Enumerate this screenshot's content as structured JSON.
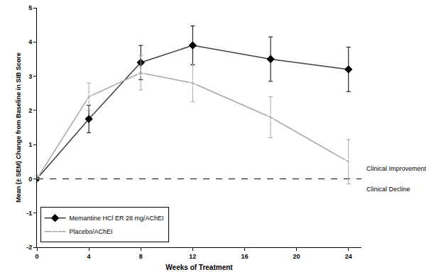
{
  "chart_data": {
    "type": "line",
    "x_label": "Weeks of Treatment",
    "y_label": "Mean (± SEM) Change from Baseline in SIB Score",
    "x": [
      0,
      4,
      8,
      12,
      18,
      24
    ],
    "series": [
      {
        "name": "Memantine HCl ER 28 mg/AChEI",
        "color": "#404040",
        "marker": "diamond",
        "line_style": "solid",
        "values": [
          0,
          1.75,
          3.4,
          3.9,
          3.5,
          3.2
        ],
        "errors": [
          0,
          0.4,
          0.5,
          0.57,
          0.65,
          0.65
        ]
      },
      {
        "name": "Placebo/AChEI",
        "color": "#a6a6a6",
        "marker": "square-open",
        "line_style": "solid",
        "values": [
          0,
          2.4,
          3.1,
          2.8,
          1.8,
          0.5
        ],
        "errors": [
          0,
          0.4,
          0.5,
          0.55,
          0.6,
          0.65
        ]
      }
    ],
    "xlim": [
      0,
      25
    ],
    "xticks": [
      0,
      4,
      8,
      12,
      16,
      20,
      24
    ],
    "ylim": [
      -2,
      5
    ],
    "yticks": [
      -2,
      -1,
      0,
      1,
      2,
      3,
      4,
      5
    ],
    "reference_line": {
      "value": 0,
      "line_style": "dash",
      "color": "#000000"
    },
    "annotations": [
      {
        "text": "Clinical Improvement",
        "y": 0.3
      },
      {
        "text": "Clinical Decline",
        "y": -0.3
      }
    ],
    "legend": "lower left",
    "grid": false
  }
}
